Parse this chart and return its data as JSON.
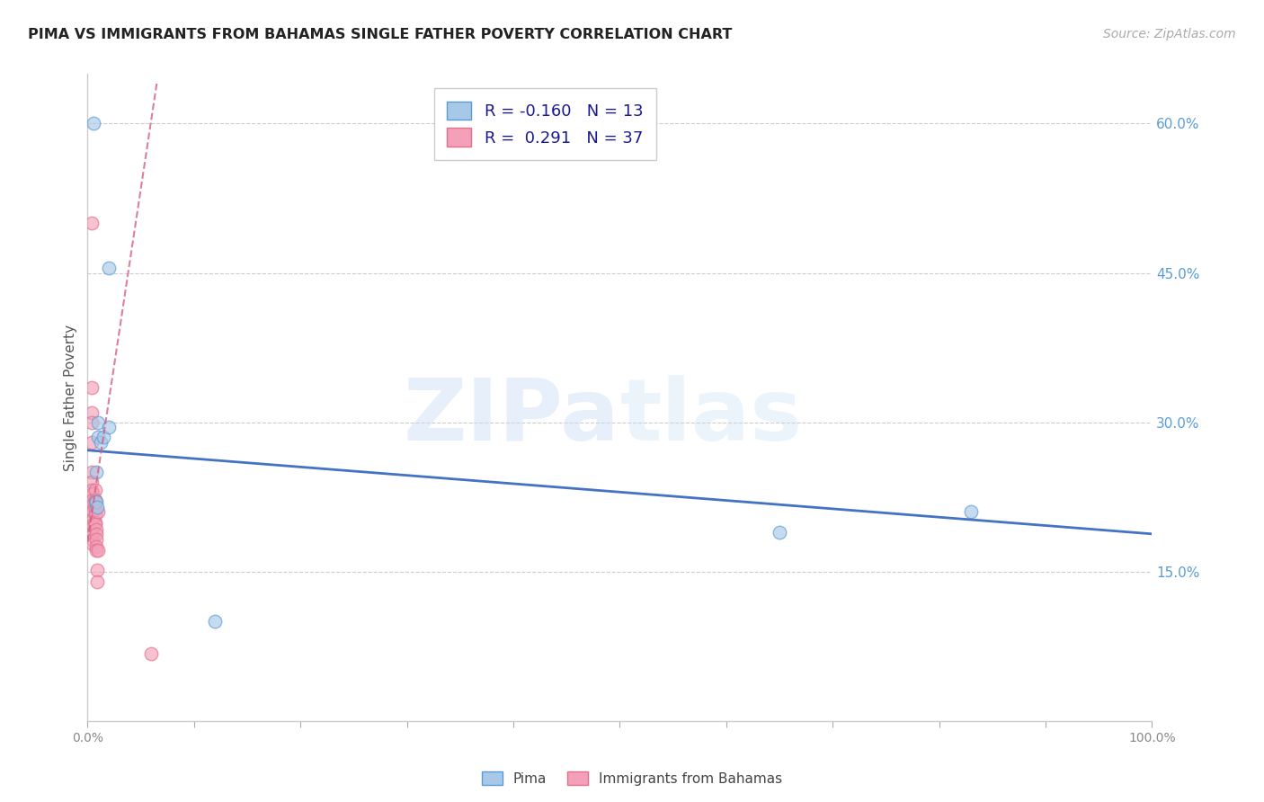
{
  "title": "PIMA VS IMMIGRANTS FROM BAHAMAS SINGLE FATHER POVERTY CORRELATION CHART",
  "source": "Source: ZipAtlas.com",
  "ylabel": "Single Father Poverty",
  "right_yticks": [
    "15.0%",
    "30.0%",
    "45.0%",
    "60.0%"
  ],
  "right_ytick_vals": [
    0.15,
    0.3,
    0.45,
    0.6
  ],
  "legend_label1": "R = -0.160   N = 13",
  "legend_label2": "R =  0.291   N = 37",
  "pima_color": "#a8c8e8",
  "bahamas_color": "#f4a0b8",
  "pima_edge_color": "#5b9bd5",
  "bahamas_edge_color": "#e07090",
  "trend_pima_color": "#4472c4",
  "trend_bahamas_color": "#d46080",
  "background_color": "#ffffff",
  "pima_x": [
    0.006,
    0.02,
    0.01,
    0.01,
    0.008,
    0.008,
    0.009,
    0.012,
    0.015,
    0.02,
    0.83,
    0.65,
    0.12
  ],
  "pima_y": [
    0.6,
    0.455,
    0.3,
    0.285,
    0.25,
    0.22,
    0.215,
    0.28,
    0.285,
    0.295,
    0.21,
    0.19,
    0.1
  ],
  "bahamas_x": [
    0.004,
    0.004,
    0.004,
    0.004,
    0.004,
    0.004,
    0.004,
    0.004,
    0.005,
    0.005,
    0.005,
    0.005,
    0.005,
    0.005,
    0.005,
    0.005,
    0.005,
    0.005,
    0.005,
    0.005,
    0.007,
    0.007,
    0.007,
    0.007,
    0.007,
    0.007,
    0.007,
    0.008,
    0.008,
    0.008,
    0.008,
    0.008,
    0.009,
    0.009,
    0.01,
    0.01,
    0.06
  ],
  "bahamas_y": [
    0.5,
    0.335,
    0.31,
    0.3,
    0.28,
    0.25,
    0.24,
    0.232,
    0.228,
    0.222,
    0.218,
    0.212,
    0.21,
    0.202,
    0.198,
    0.195,
    0.19,
    0.188,
    0.182,
    0.178,
    0.232,
    0.222,
    0.22,
    0.212,
    0.208,
    0.2,
    0.198,
    0.192,
    0.188,
    0.182,
    0.175,
    0.172,
    0.152,
    0.14,
    0.21,
    0.172,
    0.068
  ],
  "xlim": [
    0.0,
    1.0
  ],
  "ylim": [
    0.0,
    0.65
  ],
  "xticks": [
    0.0,
    0.1,
    0.2,
    0.3,
    0.4,
    0.5,
    0.6,
    0.7,
    0.8,
    0.9,
    1.0
  ],
  "marker_size": 110,
  "marker_alpha": 0.65,
  "pima_trend_x0": 0.0,
  "pima_trend_y0": 0.272,
  "pima_trend_x1": 1.0,
  "pima_trend_y1": 0.188,
  "bah_trend_x0": 0.0,
  "bah_trend_y0": 0.18,
  "bah_trend_x1": 0.065,
  "bah_trend_y1": 0.64
}
